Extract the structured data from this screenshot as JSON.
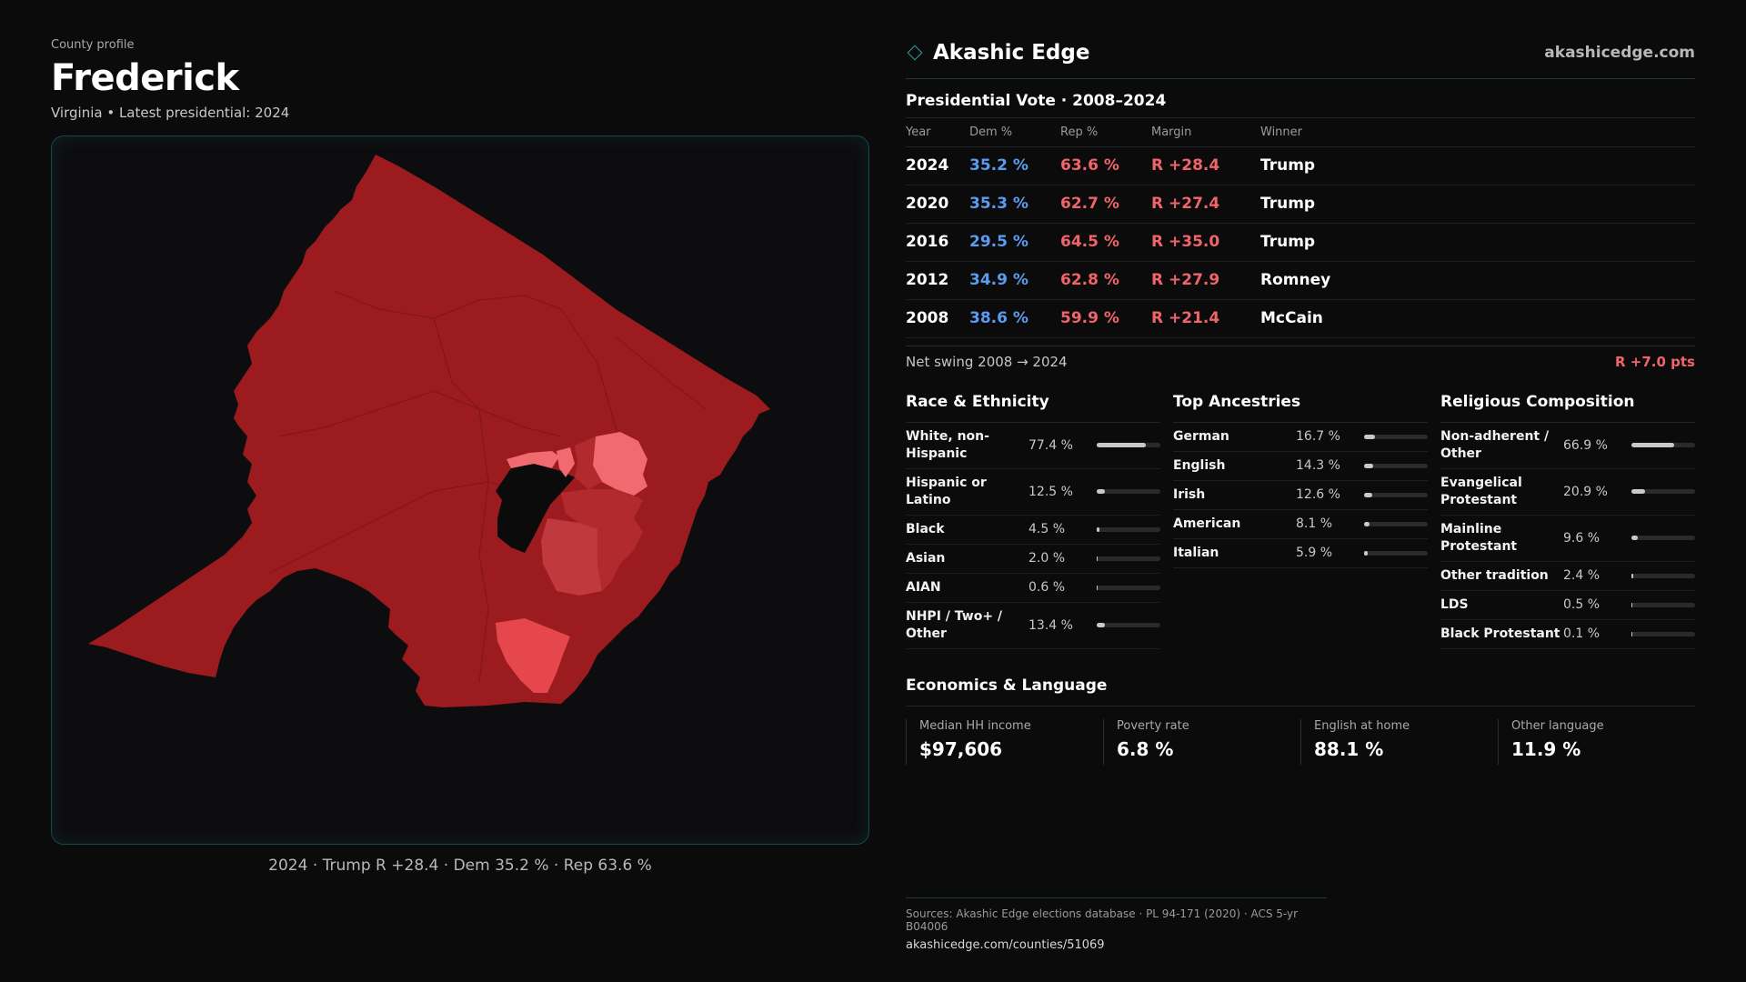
{
  "header": {
    "eyebrow": "County profile",
    "county": "Frederick",
    "subtitle": "Virginia • Latest presidential: 2024"
  },
  "map": {
    "caption": "2024 · Trump R +28.4 · Dem 35.2 % · Rep 63.6 %",
    "colors": {
      "base": "#9b1b1f",
      "mid": "#b32a2e",
      "light": "#e5474d",
      "pale": "#f06a6f",
      "hole": "#0b0b0c"
    }
  },
  "brand": {
    "name": "Akashic Edge",
    "url": "akashicedge.com"
  },
  "vote": {
    "title": "Presidential Vote · 2008–2024",
    "headers": {
      "year": "Year",
      "dem": "Dem %",
      "rep": "Rep %",
      "margin": "Margin",
      "winner": "Winner"
    },
    "rows": [
      {
        "year": "2024",
        "dem": "35.2 %",
        "rep": "63.6 %",
        "margin": "R +28.4",
        "winner": "Trump"
      },
      {
        "year": "2020",
        "dem": "35.3 %",
        "rep": "62.7 %",
        "margin": "R +27.4",
        "winner": "Trump"
      },
      {
        "year": "2016",
        "dem": "29.5 %",
        "rep": "64.5 %",
        "margin": "R +35.0",
        "winner": "Trump"
      },
      {
        "year": "2012",
        "dem": "34.9 %",
        "rep": "62.8 %",
        "margin": "R +27.9",
        "winner": "Romney"
      },
      {
        "year": "2008",
        "dem": "38.6 %",
        "rep": "59.9 %",
        "margin": "R +21.4",
        "winner": "McCain"
      }
    ],
    "swing_label": "Net swing 2008 → 2024",
    "swing_value": "R +7.0 pts"
  },
  "race": {
    "title": "Race & Ethnicity",
    "items": [
      {
        "label": "White, non-Hispanic",
        "pct": "77.4 %",
        "value": 77.4
      },
      {
        "label": "Hispanic or Latino",
        "pct": "12.5 %",
        "value": 12.5
      },
      {
        "label": "Black",
        "pct": "4.5 %",
        "value": 4.5
      },
      {
        "label": "Asian",
        "pct": "2.0 %",
        "value": 2.0
      },
      {
        "label": "AIAN",
        "pct": "0.6 %",
        "value": 0.6
      },
      {
        "label": "NHPI / Two+ / Other",
        "pct": "13.4 %",
        "value": 13.4
      }
    ]
  },
  "ancestry": {
    "title": "Top Ancestries",
    "items": [
      {
        "label": "German",
        "pct": "16.7 %",
        "value": 16.7
      },
      {
        "label": "English",
        "pct": "14.3 %",
        "value": 14.3
      },
      {
        "label": "Irish",
        "pct": "12.6 %",
        "value": 12.6
      },
      {
        "label": "American",
        "pct": "8.1 %",
        "value": 8.1
      },
      {
        "label": "Italian",
        "pct": "5.9 %",
        "value": 5.9
      }
    ]
  },
  "religion": {
    "title": "Religious Composition",
    "items": [
      {
        "label": "Non-adherent / Other",
        "pct": "66.9 %",
        "value": 66.9
      },
      {
        "label": "Evangelical Protestant",
        "pct": "20.9 %",
        "value": 20.9
      },
      {
        "label": "Mainline Protestant",
        "pct": "9.6 %",
        "value": 9.6
      },
      {
        "label": "Other tradition",
        "pct": "2.4 %",
        "value": 2.4
      },
      {
        "label": "LDS",
        "pct": "0.5 %",
        "value": 0.5
      },
      {
        "label": "Black Protestant",
        "pct": "0.1 %",
        "value": 0.1
      }
    ]
  },
  "economics": {
    "title": "Economics & Language",
    "cells": [
      {
        "label": "Median HH income",
        "value": "$97,606"
      },
      {
        "label": "Poverty rate",
        "value": "6.8 %"
      },
      {
        "label": "English at home",
        "value": "88.1 %"
      },
      {
        "label": "Other language",
        "value": "11.9 %"
      }
    ]
  },
  "footer": {
    "sources": "Sources: Akashic Edge elections database · PL 94-171 (2020) · ACS 5-yr B04006",
    "url": "akashicedge.com/counties/51069"
  }
}
